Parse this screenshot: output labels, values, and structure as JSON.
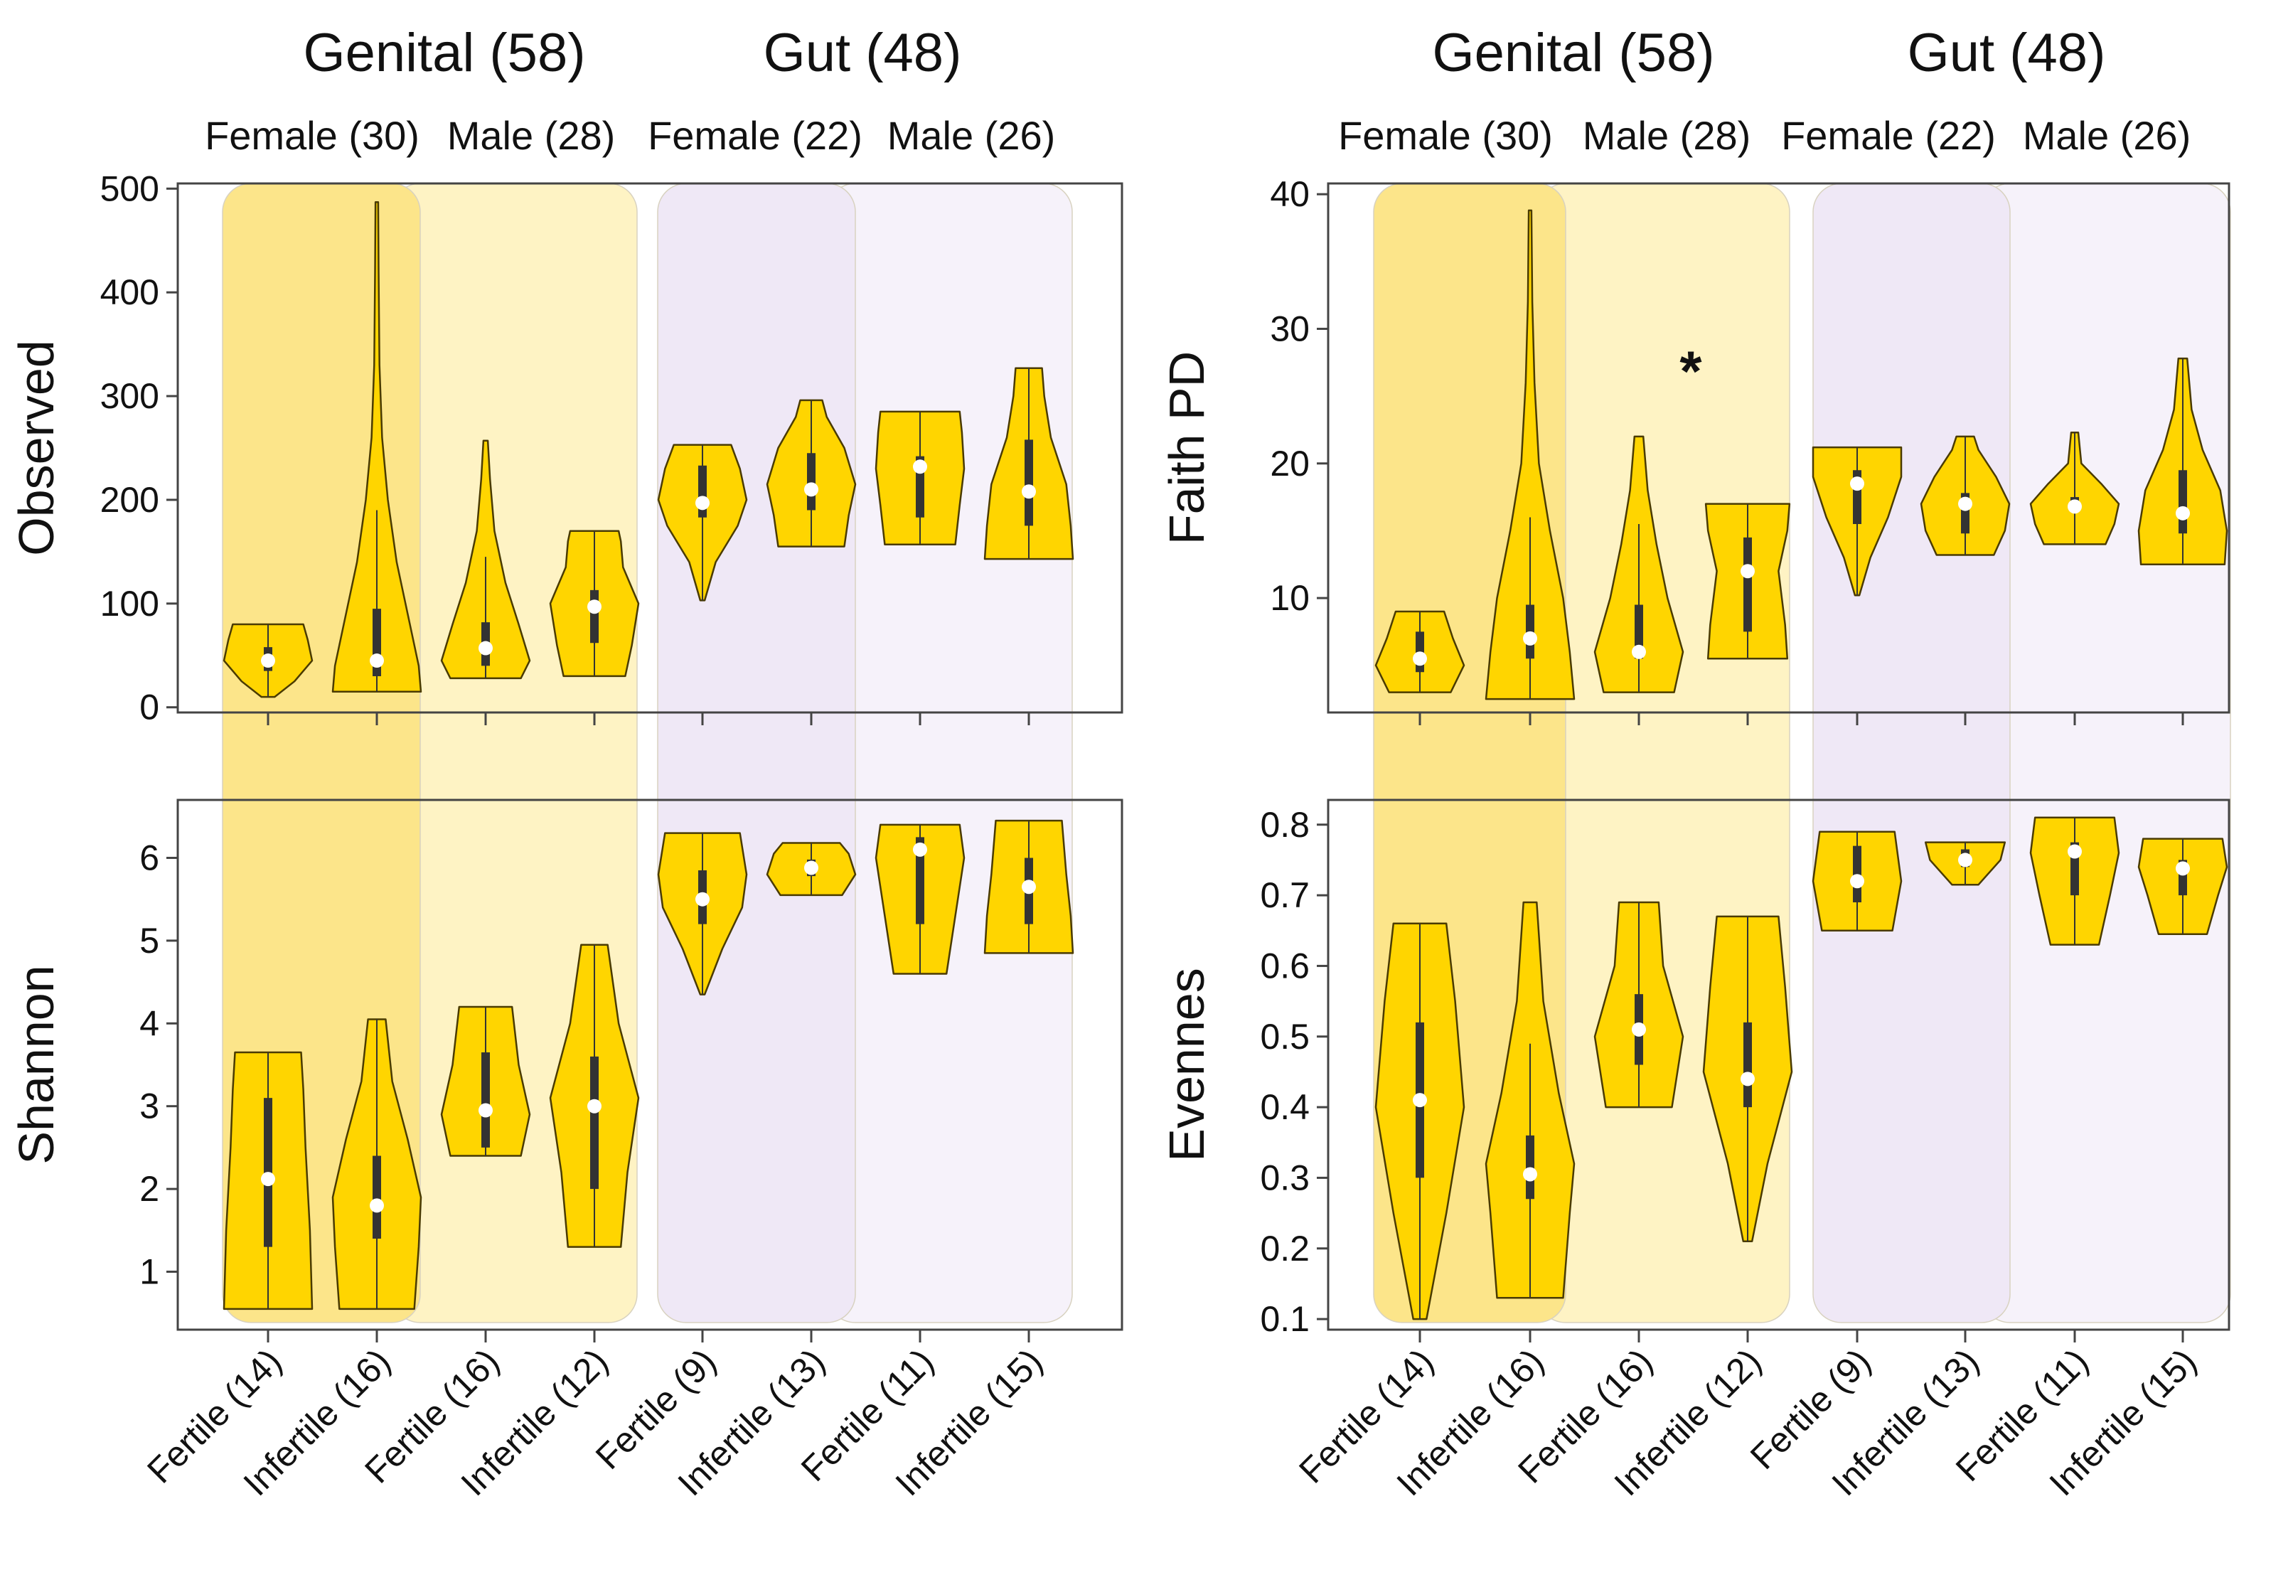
{
  "groups": [
    {
      "label": "Genital (58)",
      "subgroups": [
        "Female (30)",
        "Male (28)"
      ]
    },
    {
      "label": "Gut (48)",
      "subgroups": [
        "Female (22)",
        "Male (26)"
      ]
    }
  ],
  "categories": [
    "Fertile (14)",
    "Infertile (16)",
    "Fertile (16)",
    "Infertile (12)",
    "Fertile (9)",
    "Infertile (13)",
    "Fertile (11)",
    "Infertile (15)"
  ],
  "colors": {
    "violin_fill": "#FFD500",
    "violin_stroke": "#4a3b00",
    "box": "#333333",
    "median": "#ffffff",
    "genital_female_band": "#FCE58A",
    "genital_male_band": "#FEF3C4",
    "gut_female_band": "#EFE8F6",
    "gut_male_band": "#F6F2FA"
  },
  "chart_data": [
    {
      "type": "violin",
      "id": "observed",
      "ylabel": "Observed",
      "ylim": [
        -5,
        505
      ],
      "yticks": [
        0,
        100,
        200,
        300,
        400,
        500
      ],
      "annotations": [],
      "series": [
        {
          "category": "Fertile (14)",
          "min": 10,
          "q1": 35,
          "median": 45,
          "q3": 58,
          "max": 80,
          "profile": [
            [
              10,
              0.15
            ],
            [
              25,
              0.6
            ],
            [
              45,
              1
            ],
            [
              65,
              0.9
            ],
            [
              80,
              0.8
            ]
          ]
        },
        {
          "category": "Infertile (16)",
          "min": 15,
          "q1": 30,
          "median": 45,
          "q3": 95,
          "max": 487,
          "whisker": 190,
          "profile": [
            [
              15,
              1
            ],
            [
              40,
              0.95
            ],
            [
              80,
              0.75
            ],
            [
              140,
              0.45
            ],
            [
              200,
              0.25
            ],
            [
              260,
              0.12
            ],
            [
              330,
              0.06
            ],
            [
              420,
              0.04
            ],
            [
              487,
              0.03
            ]
          ]
        },
        {
          "category": "Fertile (16)",
          "min": 28,
          "q1": 40,
          "median": 57,
          "q3": 82,
          "max": 257,
          "whisker": 145,
          "profile": [
            [
              28,
              0.8
            ],
            [
              45,
              1
            ],
            [
              80,
              0.75
            ],
            [
              120,
              0.45
            ],
            [
              170,
              0.2
            ],
            [
              220,
              0.1
            ],
            [
              257,
              0.05
            ]
          ]
        },
        {
          "category": "Infertile (12)",
          "min": 30,
          "q1": 62,
          "median": 97,
          "q3": 113,
          "max": 170,
          "profile": [
            [
              30,
              0.7
            ],
            [
              60,
              0.85
            ],
            [
              100,
              1
            ],
            [
              135,
              0.65
            ],
            [
              160,
              0.6
            ],
            [
              170,
              0.55
            ]
          ]
        },
        {
          "category": "Fertile (9)",
          "min": 103,
          "q1": 183,
          "median": 197,
          "q3": 233,
          "max": 253,
          "profile": [
            [
              103,
              0.05
            ],
            [
              140,
              0.3
            ],
            [
              175,
              0.8
            ],
            [
              200,
              1
            ],
            [
              230,
              0.85
            ],
            [
              253,
              0.65
            ]
          ]
        },
        {
          "category": "Infertile (13)",
          "min": 155,
          "q1": 190,
          "median": 210,
          "q3": 245,
          "max": 296,
          "profile": [
            [
              155,
              0.75
            ],
            [
              185,
              0.85
            ],
            [
              215,
              1
            ],
            [
              250,
              0.75
            ],
            [
              280,
              0.35
            ],
            [
              296,
              0.25
            ]
          ]
        },
        {
          "category": "Fertile (11)",
          "min": 157,
          "q1": 183,
          "median": 232,
          "q3": 242,
          "max": 285,
          "profile": [
            [
              157,
              0.8
            ],
            [
              195,
              0.9
            ],
            [
              230,
              1
            ],
            [
              265,
              0.95
            ],
            [
              285,
              0.9
            ]
          ]
        },
        {
          "category": "Infertile (15)",
          "min": 143,
          "q1": 175,
          "median": 208,
          "q3": 258,
          "max": 327,
          "profile": [
            [
              143,
              1
            ],
            [
              175,
              0.95
            ],
            [
              215,
              0.85
            ],
            [
              260,
              0.5
            ],
            [
              300,
              0.35
            ],
            [
              327,
              0.3
            ]
          ]
        }
      ]
    },
    {
      "type": "violin",
      "id": "faith",
      "ylabel": "Faith PD",
      "ylim": [
        1.5,
        40.8
      ],
      "yticks": [
        10,
        20,
        30,
        40
      ],
      "annotations": [
        {
          "text": "*",
          "category_index": 3,
          "value": 27
        }
      ],
      "series": [
        {
          "category": "Fertile (14)",
          "min": 3,
          "q1": 4.5,
          "median": 5.5,
          "q3": 7.5,
          "max": 9,
          "profile": [
            [
              3,
              0.7
            ],
            [
              5,
              1
            ],
            [
              7,
              0.75
            ],
            [
              9,
              0.55
            ]
          ]
        },
        {
          "category": "Infertile (16)",
          "min": 2.5,
          "q1": 5.5,
          "median": 7,
          "q3": 9.5,
          "max": 38.8,
          "whisker": 16,
          "profile": [
            [
              2.5,
              1
            ],
            [
              6,
              0.9
            ],
            [
              10,
              0.75
            ],
            [
              15,
              0.45
            ],
            [
              20,
              0.2
            ],
            [
              26,
              0.1
            ],
            [
              32,
              0.05
            ],
            [
              38.8,
              0.03
            ]
          ]
        },
        {
          "category": "Fertile (16)",
          "min": 3,
          "q1": 5.5,
          "median": 6,
          "q3": 9.5,
          "max": 22,
          "whisker": 15.5,
          "profile": [
            [
              3,
              0.8
            ],
            [
              6,
              1
            ],
            [
              10,
              0.65
            ],
            [
              14,
              0.4
            ],
            [
              18,
              0.2
            ],
            [
              22,
              0.1
            ]
          ]
        },
        {
          "category": "Infertile (12)",
          "min": 5.5,
          "q1": 7.5,
          "median": 12,
          "q3": 14.5,
          "max": 17,
          "profile": [
            [
              5.5,
              0.9
            ],
            [
              8,
              0.85
            ],
            [
              12,
              0.7
            ],
            [
              15,
              0.9
            ],
            [
              17,
              0.95
            ]
          ]
        },
        {
          "category": "Fertile (9)",
          "min": 10.2,
          "q1": 15.5,
          "median": 18.5,
          "q3": 19.5,
          "max": 21.2,
          "profile": [
            [
              10.2,
              0.05
            ],
            [
              13,
              0.3
            ],
            [
              16,
              0.7
            ],
            [
              19,
              1
            ],
            [
              21.2,
              1
            ]
          ]
        },
        {
          "category": "Infertile (13)",
          "min": 13.2,
          "q1": 14.8,
          "median": 17,
          "q3": 17.8,
          "max": 22,
          "profile": [
            [
              13.2,
              0.65
            ],
            [
              15,
              0.9
            ],
            [
              17,
              1
            ],
            [
              19,
              0.7
            ],
            [
              21,
              0.3
            ],
            [
              22,
              0.2
            ]
          ]
        },
        {
          "category": "Fertile (11)",
          "min": 14,
          "q1": 16.5,
          "median": 16.8,
          "q3": 17.5,
          "max": 22.3,
          "profile": [
            [
              14,
              0.7
            ],
            [
              15.5,
              0.9
            ],
            [
              17,
              1
            ],
            [
              18.5,
              0.6
            ],
            [
              20,
              0.15
            ],
            [
              22.3,
              0.08
            ]
          ]
        },
        {
          "category": "Infertile (15)",
          "min": 12.5,
          "q1": 14.8,
          "median": 16.3,
          "q3": 19.5,
          "max": 27.8,
          "profile": [
            [
              12.5,
              0.95
            ],
            [
              15,
              1
            ],
            [
              18,
              0.85
            ],
            [
              21,
              0.45
            ],
            [
              24,
              0.2
            ],
            [
              27.8,
              0.1
            ]
          ]
        }
      ]
    },
    {
      "type": "violin",
      "id": "shannon",
      "ylabel": "Shannon",
      "ylim": [
        0.3,
        6.7
      ],
      "yticks": [
        1,
        2,
        3,
        4,
        5,
        6
      ],
      "annotations": [],
      "series": [
        {
          "category": "Fertile (14)",
          "min": 0.55,
          "q1": 1.3,
          "median": 2.12,
          "q3": 3.1,
          "max": 3.65,
          "profile": [
            [
              0.55,
              1
            ],
            [
              1.5,
              0.95
            ],
            [
              2.5,
              0.85
            ],
            [
              3.2,
              0.8
            ],
            [
              3.65,
              0.75
            ]
          ]
        },
        {
          "category": "Infertile (16)",
          "min": 0.55,
          "q1": 1.4,
          "median": 1.8,
          "q3": 2.4,
          "max": 4.05,
          "profile": [
            [
              0.55,
              0.85
            ],
            [
              1.3,
              0.95
            ],
            [
              1.9,
              1
            ],
            [
              2.6,
              0.7
            ],
            [
              3.3,
              0.35
            ],
            [
              4.05,
              0.2
            ]
          ]
        },
        {
          "category": "Fertile (16)",
          "min": 2.4,
          "q1": 2.5,
          "median": 2.95,
          "q3": 3.65,
          "max": 4.2,
          "profile": [
            [
              2.4,
              0.8
            ],
            [
              2.9,
              1
            ],
            [
              3.5,
              0.75
            ],
            [
              4.2,
              0.6
            ]
          ]
        },
        {
          "category": "Infertile (12)",
          "min": 1.3,
          "q1": 2.0,
          "median": 3.0,
          "q3": 3.6,
          "max": 4.95,
          "profile": [
            [
              1.3,
              0.6
            ],
            [
              2.2,
              0.75
            ],
            [
              3.1,
              1
            ],
            [
              4,
              0.55
            ],
            [
              4.95,
              0.3
            ]
          ]
        },
        {
          "category": "Fertile (9)",
          "min": 4.35,
          "q1": 5.2,
          "median": 5.5,
          "q3": 5.85,
          "max": 6.3,
          "profile": [
            [
              4.35,
              0.05
            ],
            [
              4.9,
              0.45
            ],
            [
              5.4,
              0.9
            ],
            [
              5.8,
              1
            ],
            [
              6.3,
              0.85
            ]
          ]
        },
        {
          "category": "Infertile (13)",
          "min": 5.55,
          "q1": 5.78,
          "median": 5.88,
          "q3": 5.98,
          "max": 6.18,
          "profile": [
            [
              5.55,
              0.7
            ],
            [
              5.8,
              1
            ],
            [
              6.05,
              0.85
            ],
            [
              6.18,
              0.65
            ]
          ]
        },
        {
          "category": "Fertile (11)",
          "min": 4.6,
          "q1": 5.2,
          "median": 6.1,
          "q3": 6.25,
          "max": 6.4,
          "profile": [
            [
              4.6,
              0.6
            ],
            [
              5.3,
              0.8
            ],
            [
              6,
              1
            ],
            [
              6.4,
              0.9
            ]
          ]
        },
        {
          "category": "Infertile (15)",
          "min": 4.85,
          "q1": 5.2,
          "median": 5.65,
          "q3": 6.0,
          "max": 6.45,
          "profile": [
            [
              4.85,
              1
            ],
            [
              5.3,
              0.95
            ],
            [
              5.8,
              0.85
            ],
            [
              6.45,
              0.75
            ]
          ]
        }
      ]
    },
    {
      "type": "violin",
      "id": "evennes",
      "ylabel": "Evennes",
      "ylim": [
        0.085,
        0.835
      ],
      "yticks": [
        0.1,
        0.2,
        0.3,
        0.4,
        0.5,
        0.6,
        0.7,
        0.8
      ],
      "annotations": [],
      "series": [
        {
          "category": "Fertile (14)",
          "min": 0.1,
          "q1": 0.3,
          "median": 0.41,
          "q3": 0.52,
          "max": 0.66,
          "profile": [
            [
              0.1,
              0.15
            ],
            [
              0.25,
              0.6
            ],
            [
              0.4,
              1
            ],
            [
              0.55,
              0.8
            ],
            [
              0.66,
              0.6
            ]
          ]
        },
        {
          "category": "Infertile (16)",
          "min": 0.13,
          "q1": 0.27,
          "median": 0.305,
          "q3": 0.36,
          "max": 0.69,
          "whisker": 0.49,
          "profile": [
            [
              0.13,
              0.75
            ],
            [
              0.25,
              0.9
            ],
            [
              0.32,
              1
            ],
            [
              0.42,
              0.65
            ],
            [
              0.55,
              0.3
            ],
            [
              0.69,
              0.15
            ]
          ]
        },
        {
          "category": "Fertile (16)",
          "min": 0.4,
          "q1": 0.46,
          "median": 0.51,
          "q3": 0.56,
          "max": 0.69,
          "profile": [
            [
              0.4,
              0.75
            ],
            [
              0.5,
              1
            ],
            [
              0.6,
              0.55
            ],
            [
              0.69,
              0.45
            ]
          ]
        },
        {
          "category": "Infertile (12)",
          "min": 0.21,
          "q1": 0.4,
          "median": 0.44,
          "q3": 0.52,
          "max": 0.67,
          "profile": [
            [
              0.21,
              0.1
            ],
            [
              0.32,
              0.45
            ],
            [
              0.45,
              1
            ],
            [
              0.57,
              0.85
            ],
            [
              0.67,
              0.7
            ]
          ]
        },
        {
          "category": "Fertile (9)",
          "min": 0.65,
          "q1": 0.69,
          "median": 0.72,
          "q3": 0.77,
          "max": 0.79,
          "profile": [
            [
              0.65,
              0.8
            ],
            [
              0.72,
              1
            ],
            [
              0.79,
              0.85
            ]
          ]
        },
        {
          "category": "Infertile (13)",
          "min": 0.715,
          "q1": 0.74,
          "median": 0.75,
          "q3": 0.765,
          "max": 0.775,
          "profile": [
            [
              0.715,
              0.3
            ],
            [
              0.75,
              0.8
            ],
            [
              0.775,
              0.9
            ]
          ]
        },
        {
          "category": "Fertile (11)",
          "min": 0.63,
          "q1": 0.7,
          "median": 0.762,
          "q3": 0.775,
          "max": 0.81,
          "profile": [
            [
              0.63,
              0.55
            ],
            [
              0.7,
              0.8
            ],
            [
              0.76,
              1
            ],
            [
              0.81,
              0.9
            ]
          ]
        },
        {
          "category": "Infertile (15)",
          "min": 0.645,
          "q1": 0.7,
          "median": 0.738,
          "q3": 0.75,
          "max": 0.78,
          "profile": [
            [
              0.645,
              0.55
            ],
            [
              0.7,
              0.8
            ],
            [
              0.74,
              1
            ],
            [
              0.78,
              0.9
            ]
          ]
        }
      ]
    }
  ]
}
